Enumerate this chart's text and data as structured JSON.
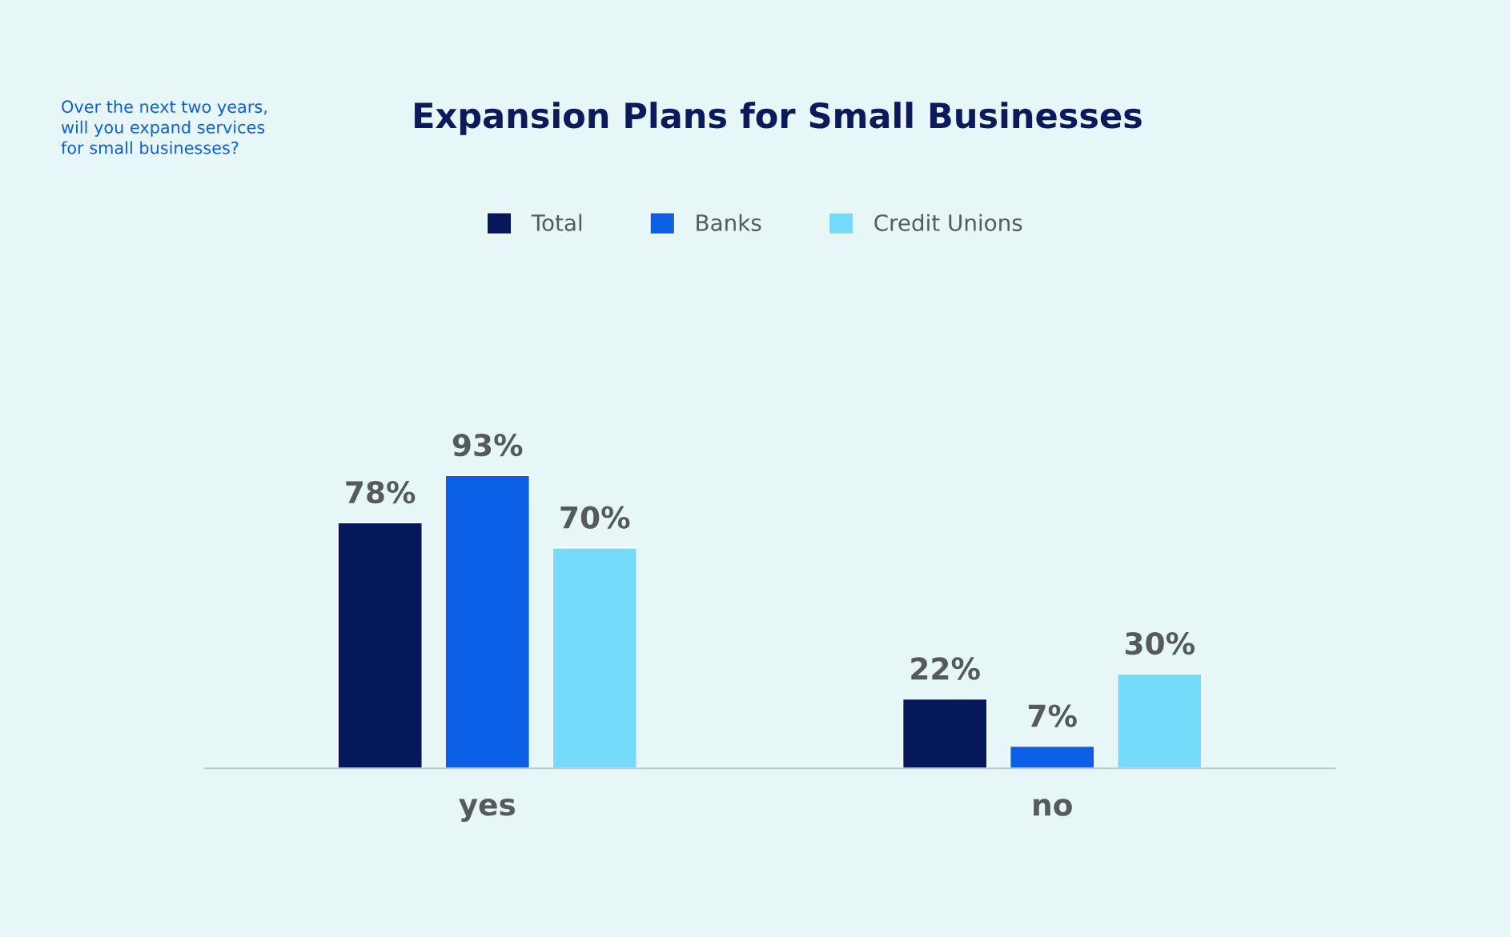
{
  "chart_data": {
    "type": "bar",
    "title": "Expansion Plans for Small Businesses",
    "annotations": [
      "Over the next two years,\nwill you expand services\nfor small businesses?"
    ],
    "categories": [
      "yes",
      "no"
    ],
    "series": [
      {
        "name": "Total",
        "color": "#06185c",
        "values": [
          78,
          22
        ],
        "value_labels": [
          "78%",
          "22%"
        ]
      },
      {
        "name": "Banks",
        "color": "#0a5fe6",
        "values": [
          93,
          7
        ],
        "value_labels": [
          "93%",
          "7%"
        ]
      },
      {
        "name": "Credit Unions",
        "color": "#76dbfa",
        "values": [
          70,
          30
        ],
        "value_labels": [
          "70%",
          "30%"
        ]
      }
    ],
    "legend": "top",
    "grid": false
  }
}
